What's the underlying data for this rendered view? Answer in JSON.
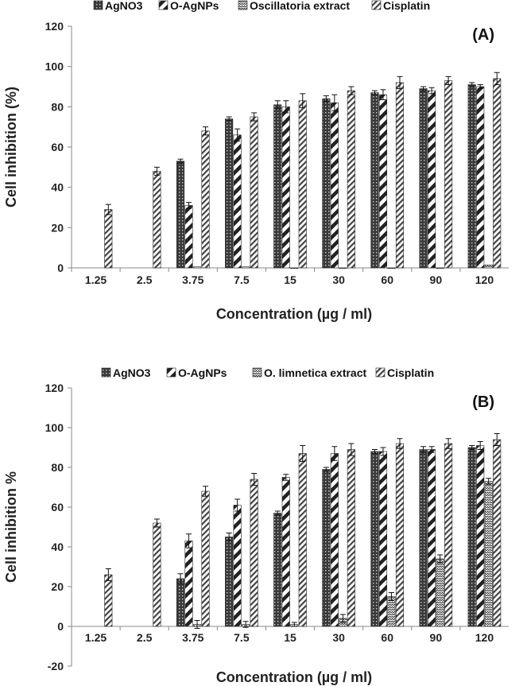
{
  "chart_data": [
    {
      "type": "bar",
      "panel_label": "(A)",
      "title": "",
      "xlabel": "Concentration (µg / ml)",
      "ylabel": "Cell inhibition (%)",
      "ylim": [
        0,
        120
      ],
      "yticks": [
        "0",
        "20",
        "40",
        "60",
        "80",
        "100",
        "120"
      ],
      "categories": [
        "1.25",
        "2.5",
        "3.75",
        "7.5",
        "15",
        "30",
        "60",
        "90",
        "120"
      ],
      "legend_position": "top",
      "series": [
        {
          "name": "AgNO3",
          "pattern": "dots",
          "values": [
            null,
            null,
            53,
            74,
            81,
            84,
            87,
            89,
            91
          ],
          "errors": [
            0,
            0,
            1,
            1,
            2,
            1.5,
            1,
            1,
            1
          ]
        },
        {
          "name": "O-AgNPs",
          "pattern": "hatch",
          "values": [
            null,
            null,
            31,
            66,
            80,
            82,
            86,
            88,
            90
          ],
          "errors": [
            0,
            0,
            1.5,
            3,
            3,
            4,
            2.5,
            1.5,
            1
          ]
        },
        {
          "name": "Oscillatoria extract",
          "pattern": "zigzag",
          "values": [
            null,
            null,
            0.5,
            0.5,
            0,
            0,
            0,
            0,
            1.5
          ],
          "errors": [
            0,
            0,
            0,
            0,
            0,
            0,
            0,
            0,
            0
          ]
        },
        {
          "name": "Cisplatin",
          "pattern": "dense-hatch",
          "values": [
            29,
            48,
            68,
            75,
            83,
            88,
            92,
            93,
            94
          ],
          "errors": [
            2.5,
            2,
            2,
            2,
            3.5,
            2,
            3,
            2,
            3
          ]
        }
      ]
    },
    {
      "type": "bar",
      "panel_label": "(B)",
      "title": "",
      "xlabel": "Concentration (µg / ml)",
      "ylabel": "Cell inhibition %",
      "ylim": [
        -20,
        120
      ],
      "yticks": [
        "-20",
        "0",
        "20",
        "40",
        "60",
        "80",
        "100",
        "120"
      ],
      "categories": [
        "1.25",
        "2.5",
        "3.75",
        "7.5",
        "15",
        "30",
        "60",
        "90",
        "120"
      ],
      "legend_position": "top",
      "series": [
        {
          "name": "AgNO3",
          "pattern": "dots",
          "values": [
            null,
            null,
            24,
            45,
            57,
            79,
            88,
            89,
            90
          ],
          "errors": [
            0,
            0,
            2.5,
            2,
            1,
            1,
            1,
            1.5,
            1
          ]
        },
        {
          "name": "O-AgNPs",
          "pattern": "hatch",
          "values": [
            null,
            null,
            43,
            61,
            75,
            87,
            88,
            89,
            91
          ],
          "errors": [
            0,
            0,
            3.5,
            3,
            1.5,
            3.5,
            2,
            1.5,
            2
          ]
        },
        {
          "name": "O. limnetica extract",
          "pattern": "zigzag",
          "values": [
            null,
            null,
            1,
            1,
            1,
            4,
            15,
            34,
            73
          ],
          "errors": [
            0,
            0,
            2,
            1.5,
            1,
            2,
            2,
            2,
            1.5
          ]
        },
        {
          "name": "Cisplatin",
          "pattern": "dense-hatch",
          "values": [
            26,
            52,
            68,
            74,
            87,
            89,
            92,
            92,
            94
          ],
          "errors": [
            3,
            2,
            2.5,
            3,
            4,
            3,
            2.5,
            2.5,
            3
          ]
        }
      ]
    }
  ]
}
